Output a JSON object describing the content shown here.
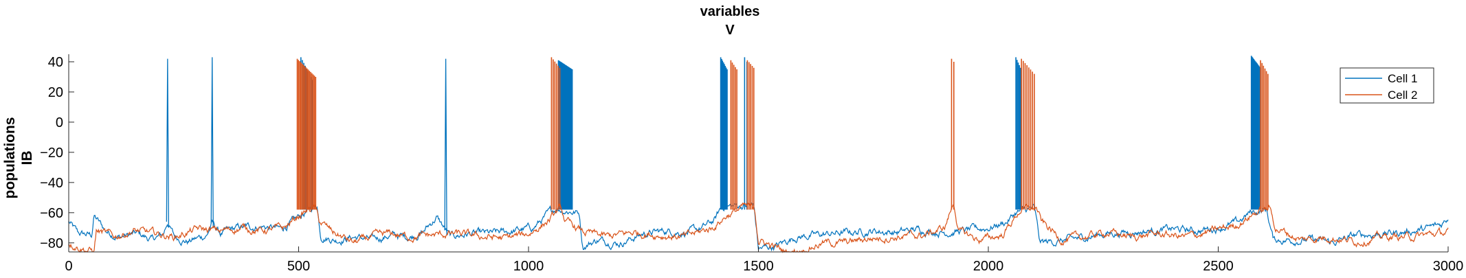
{
  "chart_data": {
    "type": "line",
    "title": [
      "variables",
      "V"
    ],
    "ylabel": [
      "populations",
      "IB"
    ],
    "xlabel": "",
    "xlim": [
      0,
      3000
    ],
    "ylim": [
      -86,
      45
    ],
    "xticks": [
      0,
      500,
      1000,
      1500,
      2000,
      2500,
      3000
    ],
    "yticks": [
      -80,
      -60,
      -40,
      -20,
      0,
      20,
      40
    ],
    "grid": false,
    "legend_position": "top-right",
    "series": [
      {
        "name": "Cell 1",
        "color": "#0072BD",
        "baseline": [
          [
            0,
            -66
          ],
          [
            20,
            -74
          ],
          [
            50,
            -75
          ],
          [
            55,
            -62
          ],
          [
            80,
            -72
          ],
          [
            110,
            -76
          ],
          [
            150,
            -74
          ],
          [
            180,
            -78
          ],
          [
            205,
            -75
          ],
          [
            215,
            -66
          ],
          [
            230,
            -76
          ],
          [
            260,
            -79
          ],
          [
            300,
            -75
          ],
          [
            312,
            -67
          ],
          [
            330,
            -74
          ],
          [
            370,
            -70
          ],
          [
            420,
            -69
          ],
          [
            460,
            -71
          ],
          [
            490,
            -66
          ],
          [
            505,
            -62
          ],
          [
            540,
            -55
          ],
          [
            548,
            -75
          ],
          [
            580,
            -78
          ],
          [
            620,
            -76
          ],
          [
            660,
            -78
          ],
          [
            700,
            -75
          ],
          [
            740,
            -76
          ],
          [
            770,
            -73
          ],
          [
            800,
            -63
          ],
          [
            830,
            -76
          ],
          [
            870,
            -74
          ],
          [
            920,
            -74
          ],
          [
            970,
            -72
          ],
          [
            1010,
            -70
          ],
          [
            1040,
            -62
          ],
          [
            1060,
            -57
          ],
          [
            1110,
            -60
          ],
          [
            1118,
            -82
          ],
          [
            1150,
            -78
          ],
          [
            1200,
            -80
          ],
          [
            1250,
            -74
          ],
          [
            1300,
            -72
          ],
          [
            1350,
            -73
          ],
          [
            1380,
            -70
          ],
          [
            1405,
            -65
          ],
          [
            1420,
            -56
          ],
          [
            1490,
            -55
          ],
          [
            1500,
            -84
          ],
          [
            1540,
            -82
          ],
          [
            1580,
            -76
          ],
          [
            1620,
            -75
          ],
          [
            1660,
            -74
          ],
          [
            1700,
            -73
          ],
          [
            1750,
            -72
          ],
          [
            1800,
            -73
          ],
          [
            1850,
            -71
          ],
          [
            1900,
            -73
          ],
          [
            1950,
            -72
          ],
          [
            2000,
            -70
          ],
          [
            2040,
            -66
          ],
          [
            2060,
            -60
          ],
          [
            2100,
            -57
          ],
          [
            2112,
            -80
          ],
          [
            2150,
            -79
          ],
          [
            2200,
            -77
          ],
          [
            2250,
            -74
          ],
          [
            2300,
            -73
          ],
          [
            2350,
            -72
          ],
          [
            2400,
            -71
          ],
          [
            2450,
            -72
          ],
          [
            2500,
            -70
          ],
          [
            2540,
            -67
          ],
          [
            2570,
            -60
          ],
          [
            2605,
            -58
          ],
          [
            2620,
            -78
          ],
          [
            2660,
            -78
          ],
          [
            2700,
            -78
          ],
          [
            2750,
            -80
          ],
          [
            2800,
            -75
          ],
          [
            2850,
            -74
          ],
          [
            2900,
            -73
          ],
          [
            2950,
            -71
          ],
          [
            2985,
            -68
          ],
          [
            3000,
            -63
          ]
        ],
        "spikes": [
          215,
          312,
          820
        ],
        "bursts": [
          [
            505,
            530,
            9,
            43,
            28
          ],
          [
            1065,
            1095,
            22,
            41,
            35
          ],
          [
            1418,
            1432,
            8,
            43,
            35
          ],
          [
            1470,
            1475,
            2,
            43,
            40
          ],
          [
            2060,
            2070,
            5,
            43,
            36
          ],
          [
            2572,
            2592,
            12,
            44,
            36
          ]
        ]
      },
      {
        "name": "Cell 2",
        "color": "#D95319",
        "baseline": [
          [
            0,
            -80
          ],
          [
            55,
            -86
          ],
          [
            60,
            -72
          ],
          [
            100,
            -76
          ],
          [
            140,
            -72
          ],
          [
            190,
            -74
          ],
          [
            230,
            -76
          ],
          [
            280,
            -71
          ],
          [
            330,
            -72
          ],
          [
            380,
            -70
          ],
          [
            420,
            -72
          ],
          [
            470,
            -70
          ],
          [
            500,
            -62
          ],
          [
            535,
            -56
          ],
          [
            545,
            -66
          ],
          [
            575,
            -73
          ],
          [
            620,
            -80
          ],
          [
            660,
            -76
          ],
          [
            700,
            -74
          ],
          [
            740,
            -76
          ],
          [
            790,
            -75
          ],
          [
            840,
            -74
          ],
          [
            900,
            -76
          ],
          [
            950,
            -77
          ],
          [
            1000,
            -74
          ],
          [
            1045,
            -65
          ],
          [
            1070,
            -57
          ],
          [
            1080,
            -66
          ],
          [
            1120,
            -73
          ],
          [
            1170,
            -76
          ],
          [
            1230,
            -73
          ],
          [
            1290,
            -75
          ],
          [
            1340,
            -76
          ],
          [
            1400,
            -70
          ],
          [
            1430,
            -62
          ],
          [
            1470,
            -56
          ],
          [
            1492,
            -58
          ],
          [
            1500,
            -78
          ],
          [
            1560,
            -86
          ],
          [
            1600,
            -84
          ],
          [
            1640,
            -80
          ],
          [
            1690,
            -80
          ],
          [
            1740,
            -77
          ],
          [
            1800,
            -76
          ],
          [
            1860,
            -75
          ],
          [
            1905,
            -70
          ],
          [
            1925,
            -53
          ],
          [
            1935,
            -72
          ],
          [
            1980,
            -78
          ],
          [
            2030,
            -75
          ],
          [
            2070,
            -58
          ],
          [
            2105,
            -57
          ],
          [
            2115,
            -66
          ],
          [
            2160,
            -78
          ],
          [
            2210,
            -76
          ],
          [
            2260,
            -73
          ],
          [
            2310,
            -76
          ],
          [
            2370,
            -74
          ],
          [
            2430,
            -76
          ],
          [
            2480,
            -73
          ],
          [
            2540,
            -68
          ],
          [
            2580,
            -60
          ],
          [
            2612,
            -57
          ],
          [
            2625,
            -70
          ],
          [
            2680,
            -78
          ],
          [
            2740,
            -76
          ],
          [
            2800,
            -79
          ],
          [
            2860,
            -76
          ],
          [
            2920,
            -76
          ],
          [
            2970,
            -74
          ],
          [
            3000,
            -73
          ]
        ],
        "spikes": [],
        "bursts": [
          [
            497,
            537,
            16,
            42,
            30
          ],
          [
            1050,
            1068,
            6,
            43,
            36
          ],
          [
            1440,
            1453,
            5,
            41,
            35
          ],
          [
            1476,
            1490,
            5,
            41,
            36
          ],
          [
            1920,
            1925,
            2,
            42,
            40
          ],
          [
            2072,
            2100,
            8,
            42,
            32
          ],
          [
            2592,
            2608,
            6,
            41,
            32
          ]
        ]
      }
    ]
  }
}
